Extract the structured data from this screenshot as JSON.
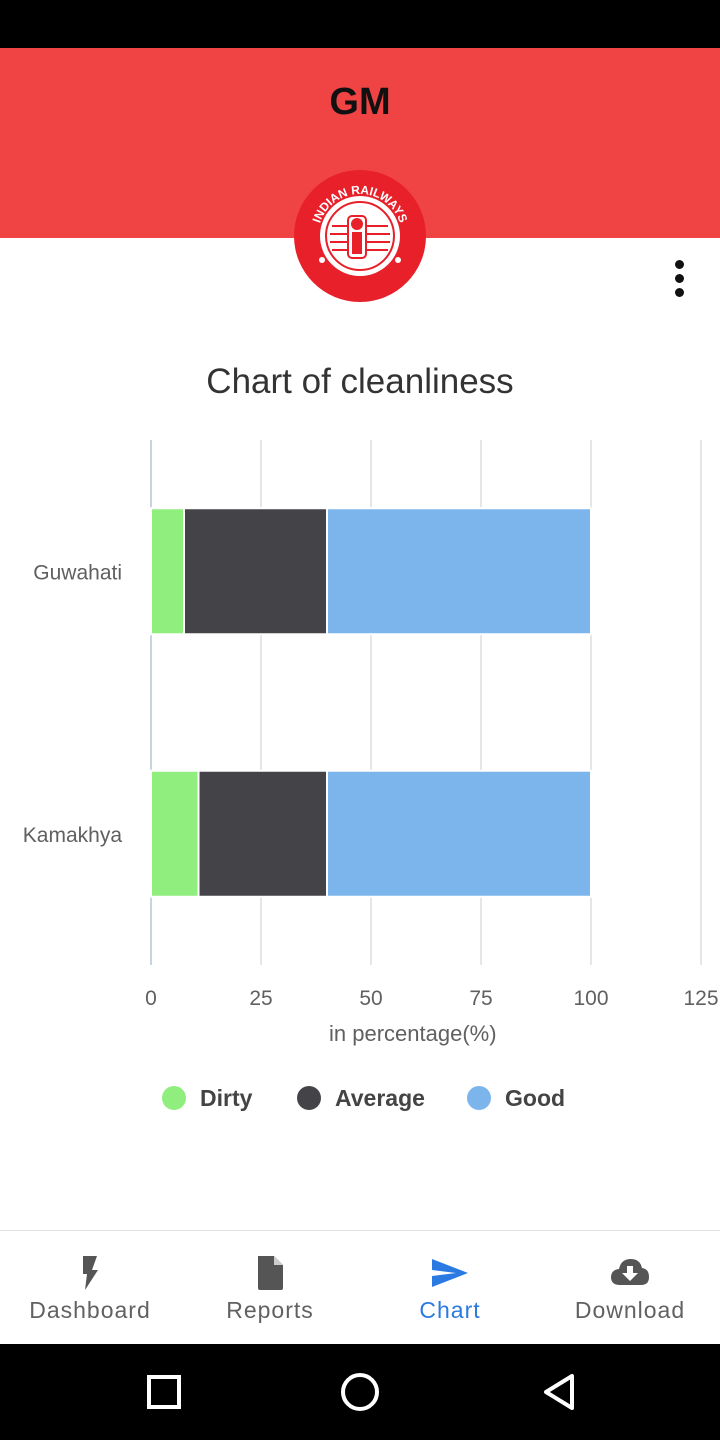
{
  "header": {
    "title": "GM",
    "background": "#f04343",
    "logo": {
      "name": "indian-railways-logo-icon",
      "text": "INDIAN RAILWAYS"
    }
  },
  "menu": {
    "icon": "more-vert-icon"
  },
  "chart_data": {
    "type": "bar",
    "orientation": "horizontal",
    "stacked": true,
    "title": "Chart of cleanliness",
    "xlabel": "in percentage(%)",
    "ylabel": "",
    "categories": [
      "Guwahati",
      "Kamakhya"
    ],
    "series": [
      {
        "name": "Dirty",
        "color": "#90ee7e",
        "values": [
          7.5,
          10.8
        ]
      },
      {
        "name": "Average",
        "color": "#434348",
        "values": [
          32.5,
          29.2
        ]
      },
      {
        "name": "Good",
        "color": "#7cb5ec",
        "values": [
          60,
          60
        ]
      }
    ],
    "xlim": [
      0,
      125
    ],
    "xticks": [
      "0",
      "25",
      "50",
      "75",
      "100",
      "125"
    ],
    "grid": true,
    "legend": "bottom"
  },
  "bottom_nav": {
    "items": [
      {
        "label": "Dashboard",
        "icon": "flash-icon",
        "active": false
      },
      {
        "label": "Reports",
        "icon": "document-icon",
        "active": false
      },
      {
        "label": "Chart",
        "icon": "send-icon",
        "active": true
      },
      {
        "label": "Download",
        "icon": "cloud-download-icon",
        "active": false
      }
    ],
    "active_color": "#2a7ae2",
    "inactive_color": "#616161"
  },
  "system_nav": {
    "icons": [
      "recents-square-icon",
      "home-circle-icon",
      "back-triangle-icon"
    ]
  }
}
